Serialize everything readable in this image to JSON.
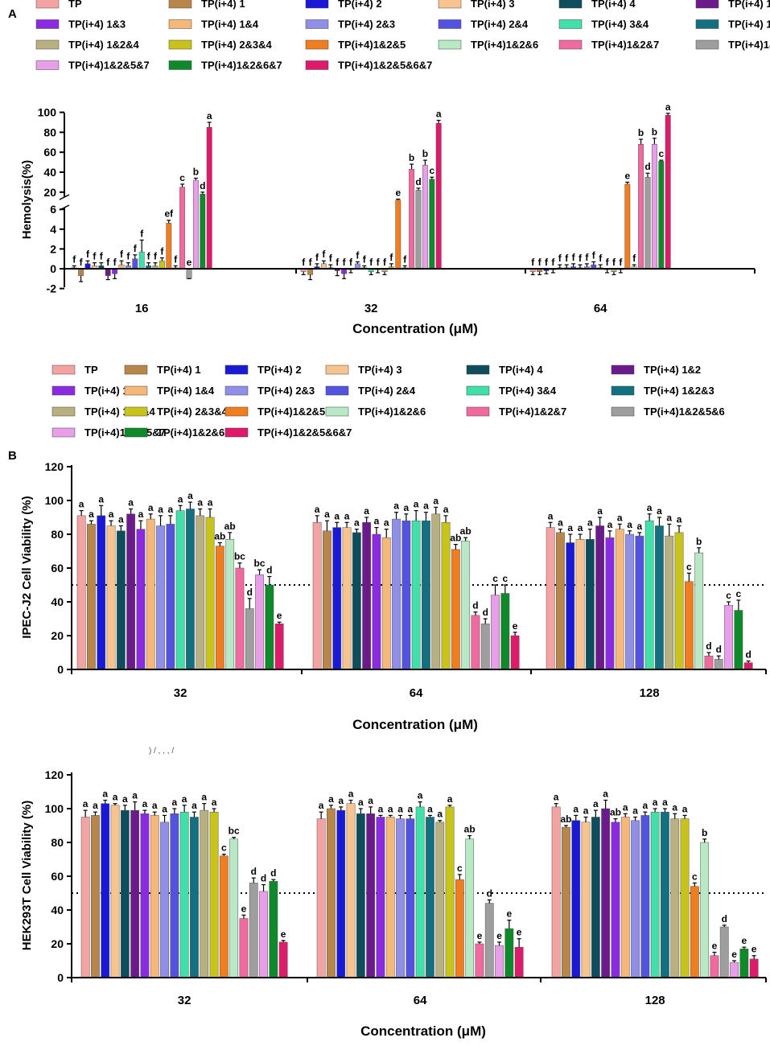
{
  "panel_labels": {
    "a": "A",
    "b": "B"
  },
  "series_names": [
    "TP",
    "TP(i+4) 1",
    "TP(i+4) 2",
    "TP(i+4) 3",
    "TP(i+4) 4",
    "TP(i+4) 1&2",
    "TP(i+4) 1&3",
    "TP(i+4) 1&4",
    "TP(i+4) 2&3",
    "TP(i+4) 2&4",
    "TP(i+4) 3&4",
    "TP(i+4) 1&2&3",
    "TP(i+4) 1&2&4",
    "TP(i+4) 2&3&4",
    "TP(i+4)1&2&5",
    "TP(i+4)1&2&6",
    "TP(i+4)1&2&7",
    "TP(i+4)1&2&5&6",
    "TP(i+4)1&2&5&7",
    "TP(i+4)1&2&6&7",
    "TP(i+4)1&2&5&6&7"
  ],
  "series_colors": [
    "#f4a3a3",
    "#b8864a",
    "#1a1ad6",
    "#f7c38e",
    "#0d4d5c",
    "#6a1a8a",
    "#8a2be2",
    "#f5b878",
    "#8f8fe8",
    "#5353e0",
    "#40e0a8",
    "#137080",
    "#b8b080",
    "#c8c41a",
    "#f07d1e",
    "#b8e8c4",
    "#f06aa0",
    "#9e9e9e",
    "#e89ee8",
    "#0e8a2a",
    "#e01a6a"
  ],
  "chart_data": [
    {
      "id": "hemolysis",
      "type": "bar",
      "title": "",
      "xlabel": "Concentration (μM)",
      "ylabel": "Hemolysis(%)",
      "categories": [
        "16",
        "32",
        "64"
      ],
      "ylim": [
        -2,
        100
      ],
      "axis_break": [
        6,
        15
      ],
      "yticks": [
        -2,
        0,
        2,
        4,
        6,
        20,
        40,
        60,
        80,
        100
      ],
      "reference_line": null,
      "values": [
        [
          0.1,
          -0.7,
          0.5,
          0.3,
          0.3,
          -0.7,
          -0.5,
          0.4,
          0.3,
          1.0,
          1.7,
          0.3,
          0.3,
          0.8,
          4.6,
          0.1,
          25,
          -1,
          32,
          18,
          85
        ],
        [
          -0.3,
          -0.6,
          0.2,
          0.5,
          0.1,
          -0.2,
          -0.5,
          -0.1,
          0.5,
          0.1,
          -0.3,
          -0.1,
          -0.3,
          0.2,
          12,
          0.1,
          43,
          22,
          47,
          33,
          89
        ],
        [
          -0.3,
          -0.3,
          -0.2,
          -0.1,
          0.1,
          0.1,
          0.2,
          0.1,
          0.2,
          0.4,
          0.1,
          -0.1,
          -0.3,
          -0.1,
          28,
          0.2,
          68,
          35,
          68,
          51,
          97
        ]
      ],
      "errors": [
        [
          0.2,
          0.6,
          0.3,
          0.3,
          0.3,
          0.4,
          0.5,
          0.4,
          0.3,
          0.4,
          1.2,
          0.3,
          0.3,
          0.3,
          0.3,
          0.2,
          3,
          0,
          2,
          2,
          5
        ],
        [
          0.3,
          0.5,
          0.3,
          0.3,
          0.3,
          0.5,
          0.5,
          0.3,
          0.2,
          0.2,
          0.3,
          0.3,
          0.3,
          0.3,
          1,
          0.2,
          5,
          2,
          5,
          2,
          3
        ],
        [
          0.3,
          0.3,
          0.3,
          0.3,
          0.3,
          0.3,
          0.3,
          0.3,
          0.3,
          0.3,
          0.3,
          0.3,
          0.3,
          0.3,
          2,
          0.2,
          5,
          4,
          6,
          1,
          2
        ]
      ],
      "letters": [
        [
          "f",
          "f",
          "f",
          "f",
          "f",
          "f",
          "f",
          "f",
          "f",
          "f",
          "f",
          "f",
          "f",
          "f",
          "ef",
          "f",
          "c",
          "e",
          "b",
          "d",
          "a"
        ],
        [
          "f",
          "f",
          "f",
          "f",
          "f",
          "f",
          "f",
          "f",
          "f",
          "f",
          "f",
          "f",
          "f",
          "f",
          "e",
          "f",
          "b",
          "d",
          "b",
          "c",
          "a"
        ],
        [
          "f",
          "f",
          "f",
          "f",
          "f",
          "f",
          "f",
          "f",
          "f",
          "f",
          "f",
          "f",
          "f",
          "f",
          "e",
          "f",
          "b",
          "d",
          "b",
          "c",
          "a"
        ]
      ]
    },
    {
      "id": "ipec",
      "type": "bar",
      "title": "",
      "xlabel": "Concentration (μM)",
      "ylabel": "IPEC-J2  Cell Viability (%)",
      "categories": [
        "32",
        "64",
        "128"
      ],
      "ylim": [
        0,
        120
      ],
      "yticks": [
        0,
        20,
        40,
        60,
        80,
        100,
        120
      ],
      "reference_line": 50,
      "values": [
        [
          91,
          86,
          91,
          85,
          82,
          92,
          83,
          89,
          85,
          86,
          94,
          95,
          91,
          90,
          73,
          77,
          60,
          36,
          56,
          50,
          27
        ],
        [
          87,
          82,
          84,
          84,
          81,
          87,
          80,
          78,
          89,
          88,
          88,
          88,
          92,
          87,
          71,
          76,
          32,
          27,
          44,
          45,
          20
        ],
        [
          84,
          81,
          75,
          77,
          77,
          85,
          78,
          83,
          80,
          79,
          88,
          85,
          79,
          81,
          52,
          69,
          8,
          6,
          38,
          35,
          4
        ]
      ],
      "errors": [
        [
          3,
          2,
          6,
          3,
          3,
          3,
          5,
          3,
          6,
          5,
          3,
          4,
          4,
          5,
          2,
          4,
          3,
          6,
          3,
          5,
          1
        ],
        [
          4,
          6,
          3,
          3,
          2,
          3,
          4,
          5,
          4,
          4,
          6,
          5,
          4,
          4,
          3,
          2,
          2,
          3,
          6,
          5,
          2
        ],
        [
          3,
          2,
          5,
          3,
          6,
          5,
          4,
          3,
          2,
          2,
          4,
          5,
          7,
          4,
          5,
          3,
          2,
          2,
          2,
          6,
          1
        ]
      ],
      "letters": [
        [
          "a",
          "a",
          "a",
          "a",
          "a",
          "a",
          "a",
          "a",
          "a",
          "a",
          "a",
          "a",
          "a",
          "a",
          "ab",
          "ab",
          "bc",
          "d",
          "bc",
          "d",
          "e"
        ],
        [
          "a",
          "a",
          "a",
          "a",
          "a",
          "a",
          "a",
          "a",
          "a",
          "a",
          "a",
          "a",
          "a",
          "a",
          "ab",
          "ab",
          "d",
          "d",
          "c",
          "c",
          "e"
        ],
        [
          "a",
          "a",
          "a",
          "a",
          "a",
          "a",
          "a",
          "a",
          "a",
          "a",
          "a",
          "a",
          "a",
          "a",
          "c",
          "b",
          "d",
          "d",
          "c",
          "c",
          "d"
        ]
      ]
    },
    {
      "id": "hek",
      "type": "bar",
      "title": "",
      "xlabel": "Concentration (μM)",
      "ylabel": "HEK293T Cell Viability (%)",
      "categories": [
        "32",
        "64",
        "128"
      ],
      "ylim": [
        0,
        120
      ],
      "yticks": [
        0,
        20,
        40,
        60,
        80,
        100,
        120
      ],
      "reference_line": 50,
      "values": [
        [
          95,
          96,
          103,
          102,
          99,
          99,
          97,
          96,
          92,
          97,
          98,
          95,
          99,
          98,
          72,
          82,
          35,
          56,
          51,
          57,
          21
        ],
        [
          94,
          100,
          99,
          103,
          97,
          97,
          95,
          95,
          94,
          94,
          101,
          95,
          92,
          101,
          58,
          82,
          20,
          44,
          19,
          29,
          18
        ],
        [
          101,
          89,
          93,
          92,
          95,
          100,
          92,
          95,
          93,
          96,
          98,
          98,
          94,
          94,
          54,
          80,
          13,
          30,
          9,
          17,
          11
        ]
      ],
      "errors": [
        [
          4,
          2,
          2,
          1,
          3,
          5,
          2,
          2,
          4,
          3,
          4,
          3,
          4,
          2,
          1,
          1,
          2,
          3,
          4,
          1,
          1
        ],
        [
          4,
          2,
          2,
          2,
          3,
          4,
          1,
          1,
          2,
          2,
          3,
          1,
          1,
          1,
          3,
          2,
          1,
          2,
          2,
          5,
          5
        ],
        [
          2,
          1,
          3,
          3,
          4,
          5,
          2,
          2,
          2,
          2,
          2,
          2,
          3,
          2,
          2,
          2,
          2,
          1,
          1,
          1,
          2
        ]
      ],
      "letters": [
        [
          "a",
          "a",
          "a",
          "a",
          "a",
          "a",
          "a",
          "a",
          "a",
          "a",
          "a",
          "a",
          "a",
          "a",
          "c",
          "bc",
          "e",
          "d",
          "d",
          "d",
          "e"
        ],
        [
          "a",
          "a",
          "a",
          "a",
          "a",
          "a",
          "a",
          "a",
          "a",
          "a",
          "a",
          "a",
          "a",
          "a",
          "c",
          "ab",
          "e",
          "d",
          "e",
          "e",
          "e"
        ],
        [
          "a",
          "ab",
          "a",
          "a",
          "a",
          "a",
          "ab",
          "a",
          "a",
          "a",
          "a",
          "a",
          "a",
          "a",
          "c",
          "b",
          "e",
          "d",
          "e",
          "e",
          "e"
        ]
      ]
    }
  ],
  "stray_marks": ") /  ,   ,  ,   /"
}
